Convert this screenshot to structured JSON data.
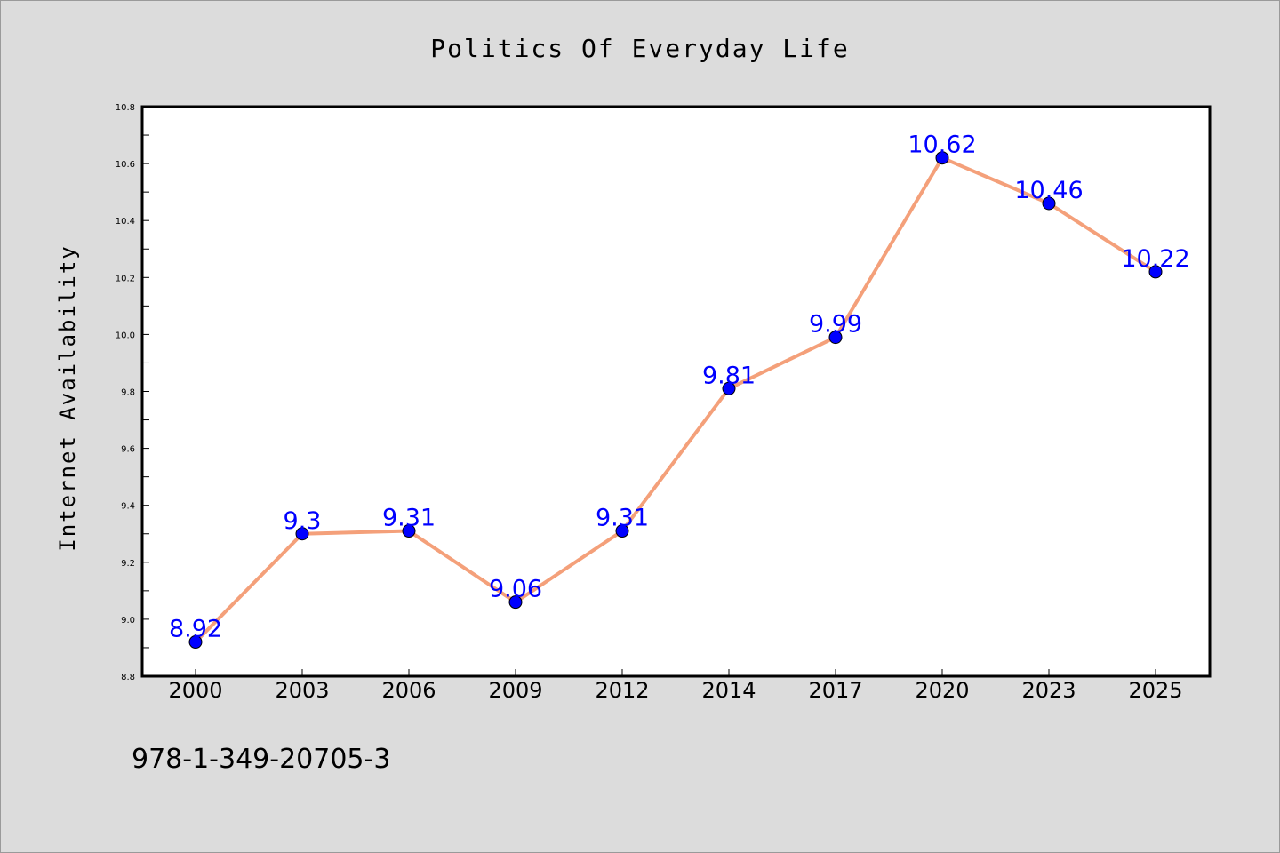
{
  "chart_data": {
    "type": "line",
    "title": "Politics Of Everyday Life",
    "xlabel": "",
    "ylabel": "Internet Availability",
    "categories": [
      "2000",
      "2003",
      "2006",
      "2009",
      "2012",
      "2014",
      "2017",
      "2020",
      "2023",
      "2025"
    ],
    "series": [
      {
        "values": [
          8.92,
          9.3,
          9.31,
          9.06,
          9.31,
          9.81,
          9.99,
          10.62,
          10.46,
          10.22
        ],
        "labels": [
          "8.92",
          "9.3",
          "9.31",
          "9.06",
          "9.31",
          "9.81",
          "9.99",
          "10.62",
          "10.46",
          "10.22"
        ],
        "line_color": "#f4a07a",
        "marker_color": "#0000ff"
      }
    ],
    "ylim": [
      8.8,
      10.8
    ],
    "yticks": [
      "8.8",
      "9.0",
      "9.2",
      "9.4",
      "9.6",
      "9.8",
      "10.0",
      "10.2",
      "10.4",
      "10.6",
      "10.8"
    ],
    "grid": false,
    "legend": "none"
  },
  "footer": {
    "isbn": "978-1-349-20705-3"
  }
}
